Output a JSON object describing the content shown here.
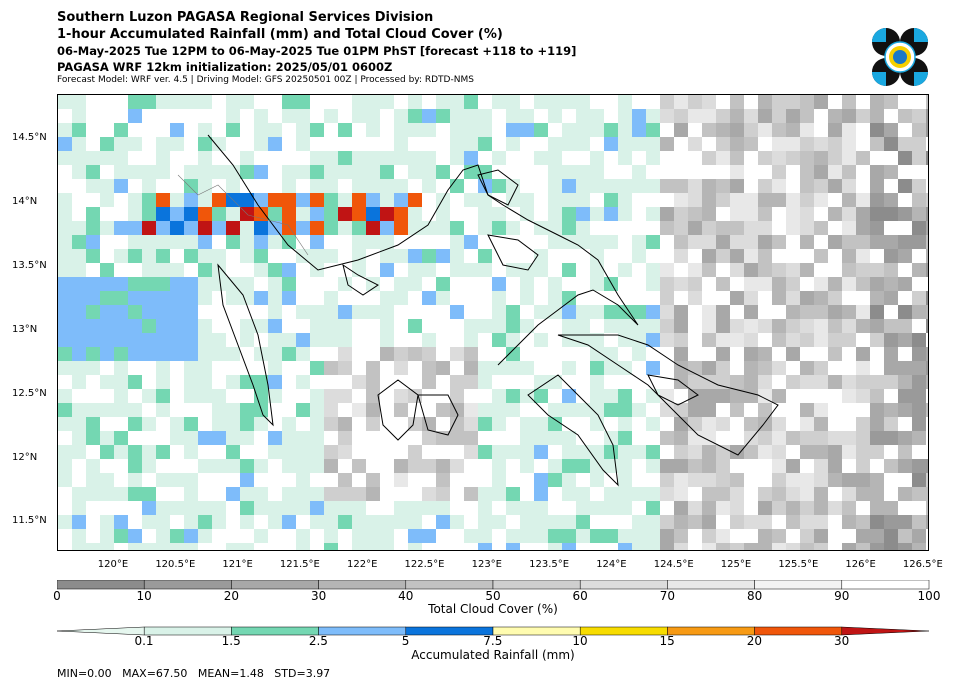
{
  "header": {
    "line1": "Southern Luzon PAGASA Regional Services Division",
    "line2": "1-hour Accumulated Rainfall (mm) and Total Cloud Cover (%)",
    "line3": "06-May-2025 Tue 12PM to 06-May-2025 Tue 01PM PhST [forecast +118 to +119]",
    "line4": "PAGASA WRF 12km initialization: 2025/05/01 0600Z",
    "line5": "Forecast Model: WRF ver. 4.5 | Driving Model: GFS 20250501 00Z | Processed by: RDTD-NMS"
  },
  "logo": {
    "icon": "pagasa-logo-icon"
  },
  "map": {
    "lat_labels": [
      "14.5°N",
      "14°N",
      "13.5°N",
      "13°N",
      "12.5°N",
      "12°N",
      "11.5°N"
    ],
    "lon_labels": [
      "120°E",
      "120.5°E",
      "121°E",
      "121.5°E",
      "122°E",
      "122.5°E",
      "123°E",
      "123.5°E",
      "124°E",
      "124.5°E",
      "125°E",
      "125.5°E",
      "126°E",
      "126.5°E"
    ]
  },
  "cloud_colorbar": {
    "ticks": [
      "0",
      "10",
      "20",
      "30",
      "40",
      "50",
      "60",
      "70",
      "80",
      "90",
      "100"
    ],
    "label": "Total Cloud Cover (%)",
    "colors": [
      "#8c8c8c",
      "#9a9a9a",
      "#a8a8a8",
      "#b5b5b5",
      "#c2c2c2",
      "#cfcfcf",
      "#dcdcdc",
      "#e8e8e8",
      "#f3f3f3",
      "#ffffff"
    ]
  },
  "rain_colorbar": {
    "ticks": [
      "0.1",
      "1.5",
      "2.5",
      "5",
      "7.5",
      "10",
      "15",
      "20",
      "30"
    ],
    "label": "Accumulated Rainfall (mm)",
    "colors": [
      "#e6f7ef",
      "#d9f2e8",
      "#74d7b2",
      "#7ebcfa",
      "#0a74dc",
      "#fffcb0",
      "#f7dc00",
      "#f79a14",
      "#f0560a",
      "#c01414"
    ]
  },
  "stats": "MIN=0.00   MAX=67.50   MEAN=1.48   STD=3.97"
}
